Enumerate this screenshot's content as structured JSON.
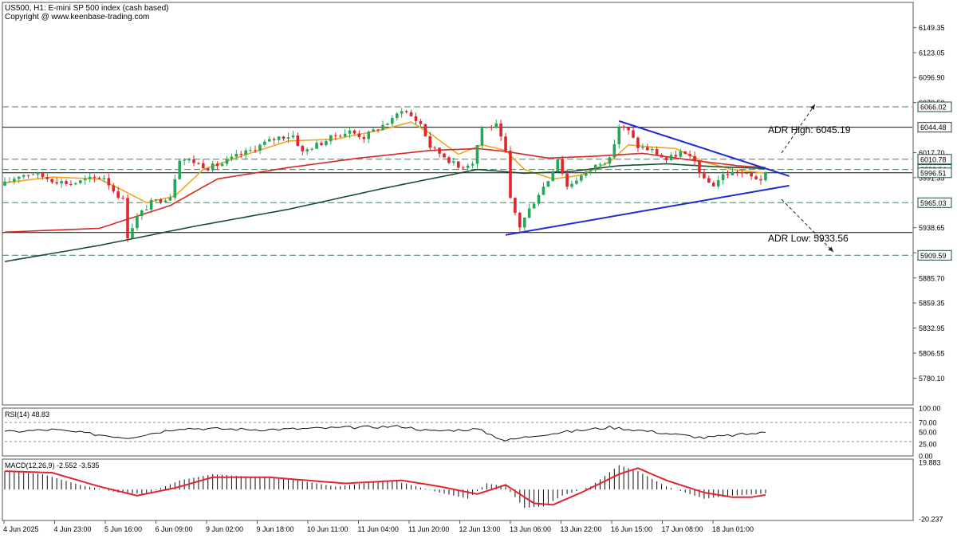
{
  "header": {
    "line1": "US500, H1:  E-mini SP 500 index (cash based)",
    "line2": "Copyright @ www.keenbase-trading.com"
  },
  "colors": {
    "bull": "#26a65b",
    "bear": "#e0262d",
    "ma_fast": "#f0a51e",
    "ma_mid": "#d42a26",
    "ma_slow": "#1c4d32",
    "trendline": "#1f2bd6",
    "grid_dash": "#4e7d5d",
    "level_line": "#111111",
    "macd_hist": "#111111",
    "macd_signal": "#e0262d",
    "rsi_line": "#111111"
  },
  "chart_data": [
    {
      "type": "candlestick",
      "panel": "price",
      "ylim": [
        5752,
        6176
      ],
      "y_ticks": [
        6149.35,
        6123.05,
        6096.9,
        6070.5,
        6017.7,
        5991.35,
        5938.65,
        5912.25,
        5885.7,
        5859.35,
        5832.95,
        5806.55,
        5780.1
      ],
      "x_ticks": [
        "4 Jun 2025",
        "4 Jun 23:00",
        "5 Jun 16:00",
        "6 Jun 09:00",
        "9 Jun 02:00",
        "9 Jun 18:00",
        "10 Jun 11:00",
        "11 Jun 04:00",
        "11 Jun 20:00",
        "12 Jun 13:00",
        "13 Jun 06:00",
        "13 Jun 22:00",
        "16 Jun 15:00",
        "17 Jun 08:00",
        "18 Jun 01:00"
      ],
      "candle_count": 162,
      "price_path": [
        [
          0,
          5985
        ],
        [
          3,
          5994
        ],
        [
          6,
          5996
        ],
        [
          10,
          5989
        ],
        [
          14,
          5985
        ],
        [
          18,
          5990
        ],
        [
          21,
          5992
        ],
        [
          23,
          5978
        ],
        [
          25,
          5968
        ],
        [
          26,
          5930
        ],
        [
          28,
          5950
        ],
        [
          31,
          5965
        ],
        [
          35,
          5972
        ],
        [
          37,
          6012
        ],
        [
          40,
          6008
        ],
        [
          43,
          6002
        ],
        [
          46,
          6006
        ],
        [
          49,
          6014
        ],
        [
          52,
          6020
        ],
        [
          55,
          6028
        ],
        [
          58,
          6034
        ],
        [
          61,
          6036
        ],
        [
          63,
          6018
        ],
        [
          65,
          6024
        ],
        [
          67,
          6028
        ],
        [
          70,
          6036
        ],
        [
          73,
          6040
        ],
        [
          76,
          6034
        ],
        [
          79,
          6044
        ],
        [
          82,
          6052
        ],
        [
          84,
          6064
        ],
        [
          86,
          6056
        ],
        [
          88,
          6048
        ],
        [
          90,
          6024
        ],
        [
          93,
          6014
        ],
        [
          96,
          6002
        ],
        [
          99,
          6008
        ],
        [
          101,
          6044
        ],
        [
          104,
          6046
        ],
        [
          106,
          6018
        ],
        [
          107,
          5968
        ],
        [
          109,
          5940
        ],
        [
          111,
          5958
        ],
        [
          113,
          5975
        ],
        [
          115,
          5989
        ],
        [
          117,
          6012
        ],
        [
          119,
          5982
        ],
        [
          121,
          5990
        ],
        [
          123,
          5996
        ],
        [
          126,
          6008
        ],
        [
          128,
          6010
        ],
        [
          130,
          6046
        ],
        [
          132,
          6040
        ],
        [
          134,
          6024
        ],
        [
          137,
          6020
        ],
        [
          140,
          6010
        ],
        [
          143,
          6018
        ],
        [
          146,
          6008
        ],
        [
          148,
          5988
        ],
        [
          150,
          5984
        ],
        [
          152,
          5994
        ],
        [
          155,
          5998
        ],
        [
          158,
          5992
        ],
        [
          160,
          5990
        ],
        [
          161,
          5994
        ]
      ],
      "moving_averages": {
        "fast_path": [
          [
            0,
            5986
          ],
          [
            10,
            5992
          ],
          [
            20,
            5990
          ],
          [
            25,
            5978
          ],
          [
            30,
            5965
          ],
          [
            36,
            5972
          ],
          [
            42,
            6000
          ],
          [
            50,
            6014
          ],
          [
            60,
            6030
          ],
          [
            70,
            6032
          ],
          [
            80,
            6042
          ],
          [
            86,
            6050
          ],
          [
            90,
            6038
          ],
          [
            96,
            6016
          ],
          [
            101,
            6026
          ],
          [
            106,
            6020
          ],
          [
            110,
            6000
          ],
          [
            116,
            5990
          ],
          [
            122,
            5994
          ],
          [
            128,
            6008
          ],
          [
            132,
            6026
          ],
          [
            136,
            6024
          ],
          [
            142,
            6022
          ],
          [
            148,
            6008
          ],
          [
            154,
            6000
          ],
          [
            161,
            5996
          ]
        ],
        "mid_path": [
          [
            0,
            5934
          ],
          [
            20,
            5938
          ],
          [
            35,
            5962
          ],
          [
            45,
            5990
          ],
          [
            60,
            6002
          ],
          [
            75,
            6012
          ],
          [
            90,
            6020
          ],
          [
            100,
            6022
          ],
          [
            106,
            6019
          ],
          [
            115,
            6012
          ],
          [
            125,
            6014
          ],
          [
            135,
            6017
          ],
          [
            145,
            6010
          ],
          [
            155,
            6004
          ],
          [
            161,
            6002
          ]
        ],
        "slow_path": [
          [
            0,
            5903
          ],
          [
            20,
            5920
          ],
          [
            40,
            5940
          ],
          [
            60,
            5958
          ],
          [
            80,
            5980
          ],
          [
            100,
            6000
          ],
          [
            110,
            5996
          ],
          [
            120,
            5998
          ],
          [
            130,
            6004
          ],
          [
            140,
            6006
          ],
          [
            150,
            6003
          ],
          [
            161,
            6001
          ]
        ]
      },
      "levels": [
        {
          "label": "6066.02",
          "value": 6066.02,
          "style": "dashed"
        },
        {
          "label": "6044.48",
          "value": 6044.48,
          "style": "solid"
        },
        {
          "label": "6010.78",
          "value": 6010.78,
          "style": "dashed"
        },
        {
          "label": "6000.04",
          "value": 6000.04,
          "style": "dashed"
        },
        {
          "label": "5996.51",
          "value": 5996.51,
          "style": "solid"
        },
        {
          "label": "5965.03",
          "value": 5965.03,
          "style": "dashed"
        },
        {
          "label": "5933.56",
          "value": 5933.56,
          "style": "solid"
        },
        {
          "label": "5909.59",
          "value": 5909.59,
          "style": "dashed"
        }
      ],
      "trendlines": [
        {
          "from": [
            130,
            6051
          ],
          "to": [
            166,
            5993
          ]
        },
        {
          "from": [
            106,
            5931
          ],
          "to": [
            166,
            5983
          ]
        }
      ],
      "annotations": {
        "adr_high": "ADR High: 6045.19",
        "adr_low": "ADR Low: 5933.56"
      }
    },
    {
      "type": "line",
      "panel": "rsi",
      "title": "RSI(14) 48.83",
      "ylim": [
        0,
        100
      ],
      "y_ticks": [
        100.0,
        70.0,
        50.0,
        25.0,
        0.0
      ],
      "reference_levels": [
        70,
        30
      ],
      "path": [
        [
          0,
          50
        ],
        [
          10,
          55
        ],
        [
          26,
          38
        ],
        [
          37,
          58
        ],
        [
          55,
          55
        ],
        [
          84,
          62
        ],
        [
          90,
          52
        ],
        [
          100,
          56
        ],
        [
          106,
          32
        ],
        [
          113,
          44
        ],
        [
          128,
          60
        ],
        [
          134,
          54
        ],
        [
          148,
          38
        ],
        [
          161,
          49
        ]
      ]
    },
    {
      "type": "bar",
      "panel": "macd",
      "title": "MACD(12,26,9) -2.552 -3.535",
      "ylim": [
        -20.237,
        19.883
      ],
      "y_ticks": [
        19.883,
        -20.237
      ],
      "hist_path": [
        [
          0,
          12
        ],
        [
          8,
          10
        ],
        [
          16,
          3
        ],
        [
          24,
          -2
        ],
        [
          30,
          -3
        ],
        [
          37,
          6
        ],
        [
          44,
          10
        ],
        [
          54,
          8
        ],
        [
          62,
          6
        ],
        [
          70,
          2
        ],
        [
          82,
          6
        ],
        [
          86,
          3
        ],
        [
          92,
          -2
        ],
        [
          98,
          -6
        ],
        [
          102,
          4
        ],
        [
          106,
          2
        ],
        [
          110,
          -12
        ],
        [
          114,
          -11
        ],
        [
          118,
          -4
        ],
        [
          124,
          2
        ],
        [
          130,
          16
        ],
        [
          134,
          12
        ],
        [
          140,
          2
        ],
        [
          148,
          -6
        ],
        [
          154,
          -4
        ],
        [
          161,
          -2.552
        ]
      ],
      "signal_path": [
        [
          0,
          12
        ],
        [
          10,
          11
        ],
        [
          20,
          2
        ],
        [
          28,
          -4
        ],
        [
          36,
          1
        ],
        [
          44,
          8
        ],
        [
          56,
          8
        ],
        [
          64,
          6
        ],
        [
          72,
          4
        ],
        [
          84,
          6
        ],
        [
          92,
          2
        ],
        [
          100,
          -3
        ],
        [
          106,
          3
        ],
        [
          112,
          -9
        ],
        [
          116,
          -10
        ],
        [
          122,
          -2
        ],
        [
          130,
          10
        ],
        [
          134,
          14
        ],
        [
          140,
          6
        ],
        [
          148,
          -2
        ],
        [
          154,
          -5
        ],
        [
          158,
          -5
        ],
        [
          161,
          -3.535
        ]
      ]
    }
  ]
}
